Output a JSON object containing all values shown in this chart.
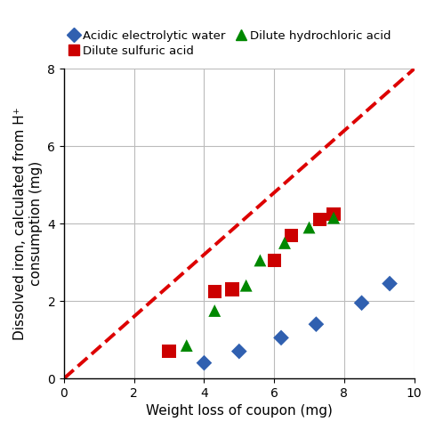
{
  "acidic_electrolytic_water": {
    "x": [
      4.0,
      5.0,
      6.2,
      7.2,
      8.5,
      9.3
    ],
    "y": [
      0.4,
      0.7,
      1.05,
      1.4,
      1.95,
      2.45
    ],
    "color": "#3060b0",
    "marker": "D",
    "label": "Acidic electrolytic water",
    "markersize": 9
  },
  "dilute_sulfuric_acid": {
    "x": [
      3.0,
      4.3,
      4.8,
      6.0,
      6.5,
      7.3,
      7.7
    ],
    "y": [
      0.7,
      2.25,
      2.3,
      3.05,
      3.7,
      4.1,
      4.25
    ],
    "color": "#cc0000",
    "marker": "s",
    "label": "Dilute sulfuric acid",
    "markersize": 11
  },
  "dilute_hydrochloric_acid": {
    "x": [
      3.5,
      4.3,
      5.2,
      5.6,
      6.3,
      7.0,
      7.7
    ],
    "y": [
      0.85,
      1.75,
      2.4,
      3.05,
      3.5,
      3.9,
      4.15
    ],
    "color": "#008800",
    "marker": "^",
    "label": "Dilute hydrochloric acid",
    "markersize": 10
  },
  "dashed_line": {
    "x": [
      0,
      10
    ],
    "y": [
      0,
      8
    ],
    "color": "#dd0000",
    "linewidth": 2.8,
    "linestyle": "--"
  },
  "xlim": [
    0,
    10
  ],
  "ylim": [
    0,
    8
  ],
  "xticks": [
    0,
    2,
    4,
    6,
    8,
    10
  ],
  "yticks": [
    0,
    2,
    4,
    6,
    8
  ],
  "xlabel": "Weight loss of coupon (mg)",
  "ylabel": "Dissolved iron, calculated from H⁺\nconsumption (mg)",
  "legend_order": [
    "acidic_electrolytic_water",
    "dilute_sulfuric_acid",
    "dilute_hydrochloric_acid"
  ],
  "grid_color": "#bbbbbb",
  "figsize": [
    4.8,
    4.83
  ],
  "dpi": 100
}
